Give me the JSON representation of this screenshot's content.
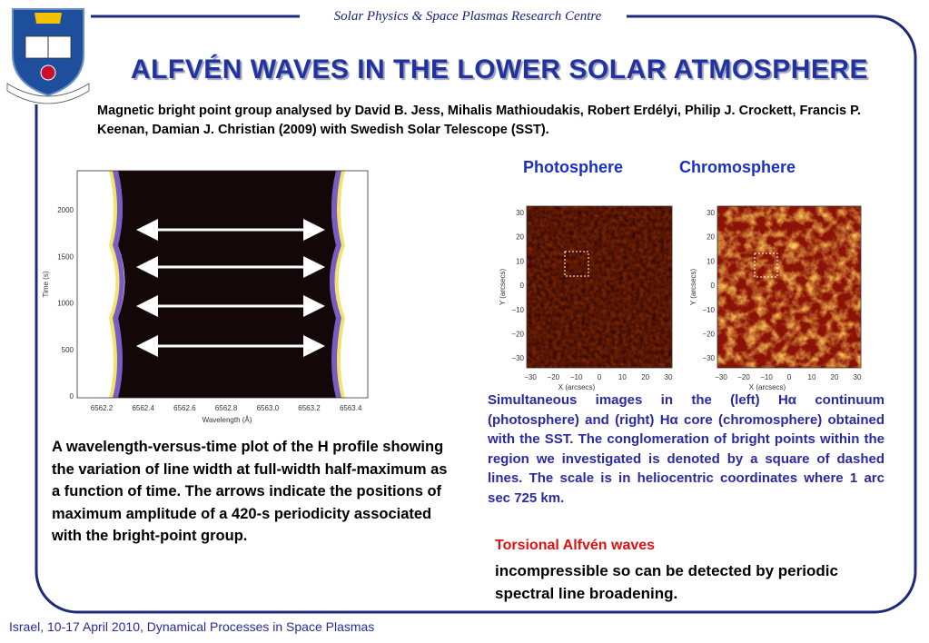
{
  "header": {
    "centre": "Solar Physics & Space Plasmas Research Centre",
    "title": "ALFVÉN WAVES IN THE LOWER SOLAR ATMOSPHERE"
  },
  "intro": "Magnetic bright point group analysed by David B. Jess, Mihalis Mathioudakis, Robert Erdélyi, Philip J. Crockett, Francis P. Keenan, Damian J. Christian (2009) with Swedish Solar Telescope (SST).",
  "figure_left": {
    "yticks": [
      "2000",
      "1500",
      "1000",
      "500",
      "0"
    ],
    "xticks": [
      "6562.2",
      "6562.4",
      "6562.6",
      "6562.8",
      "6563.0",
      "6563.2",
      "6563.4"
    ],
    "ylabel": "Time (s)",
    "xlabel": "Wavelength (Å)"
  },
  "figure_right": {
    "labels": [
      "Photosphere",
      "Chromosphere"
    ],
    "yticks": [
      "30",
      "20",
      "10",
      "0",
      "−10",
      "−20",
      "−30"
    ],
    "xticks": [
      "−30",
      "−20",
      "−10",
      "0",
      "10",
      "20",
      "30"
    ],
    "ylabel": "Y (arcsecs)",
    "xlabel": "X (arcsecs)"
  },
  "caption_left": "A wavelength-versus-time plot of the H profile showing the variation of line width at full-width half-maximum as a function of time. The arrows indicate the positions of maximum amplitude of a 420-s periodicity associated with the bright-point group.",
  "caption_right": "Simultaneous images in the (left) Hα continuum (photosphere) and (right) Hα core (chromosphere) obtained with the SST. The conglomeration of bright points within the region we investigated is denoted by a square of dashed lines. The scale is in heliocentric coordinates where 1 arc sec  725 km.",
  "highlight": "Torsional Alfvén waves",
  "note": "incompressible so can be detected by periodic spectral line broadening.",
  "footer": "Israel, 10-17 April 2010, Dynamical Processes in Space Plasmas"
}
